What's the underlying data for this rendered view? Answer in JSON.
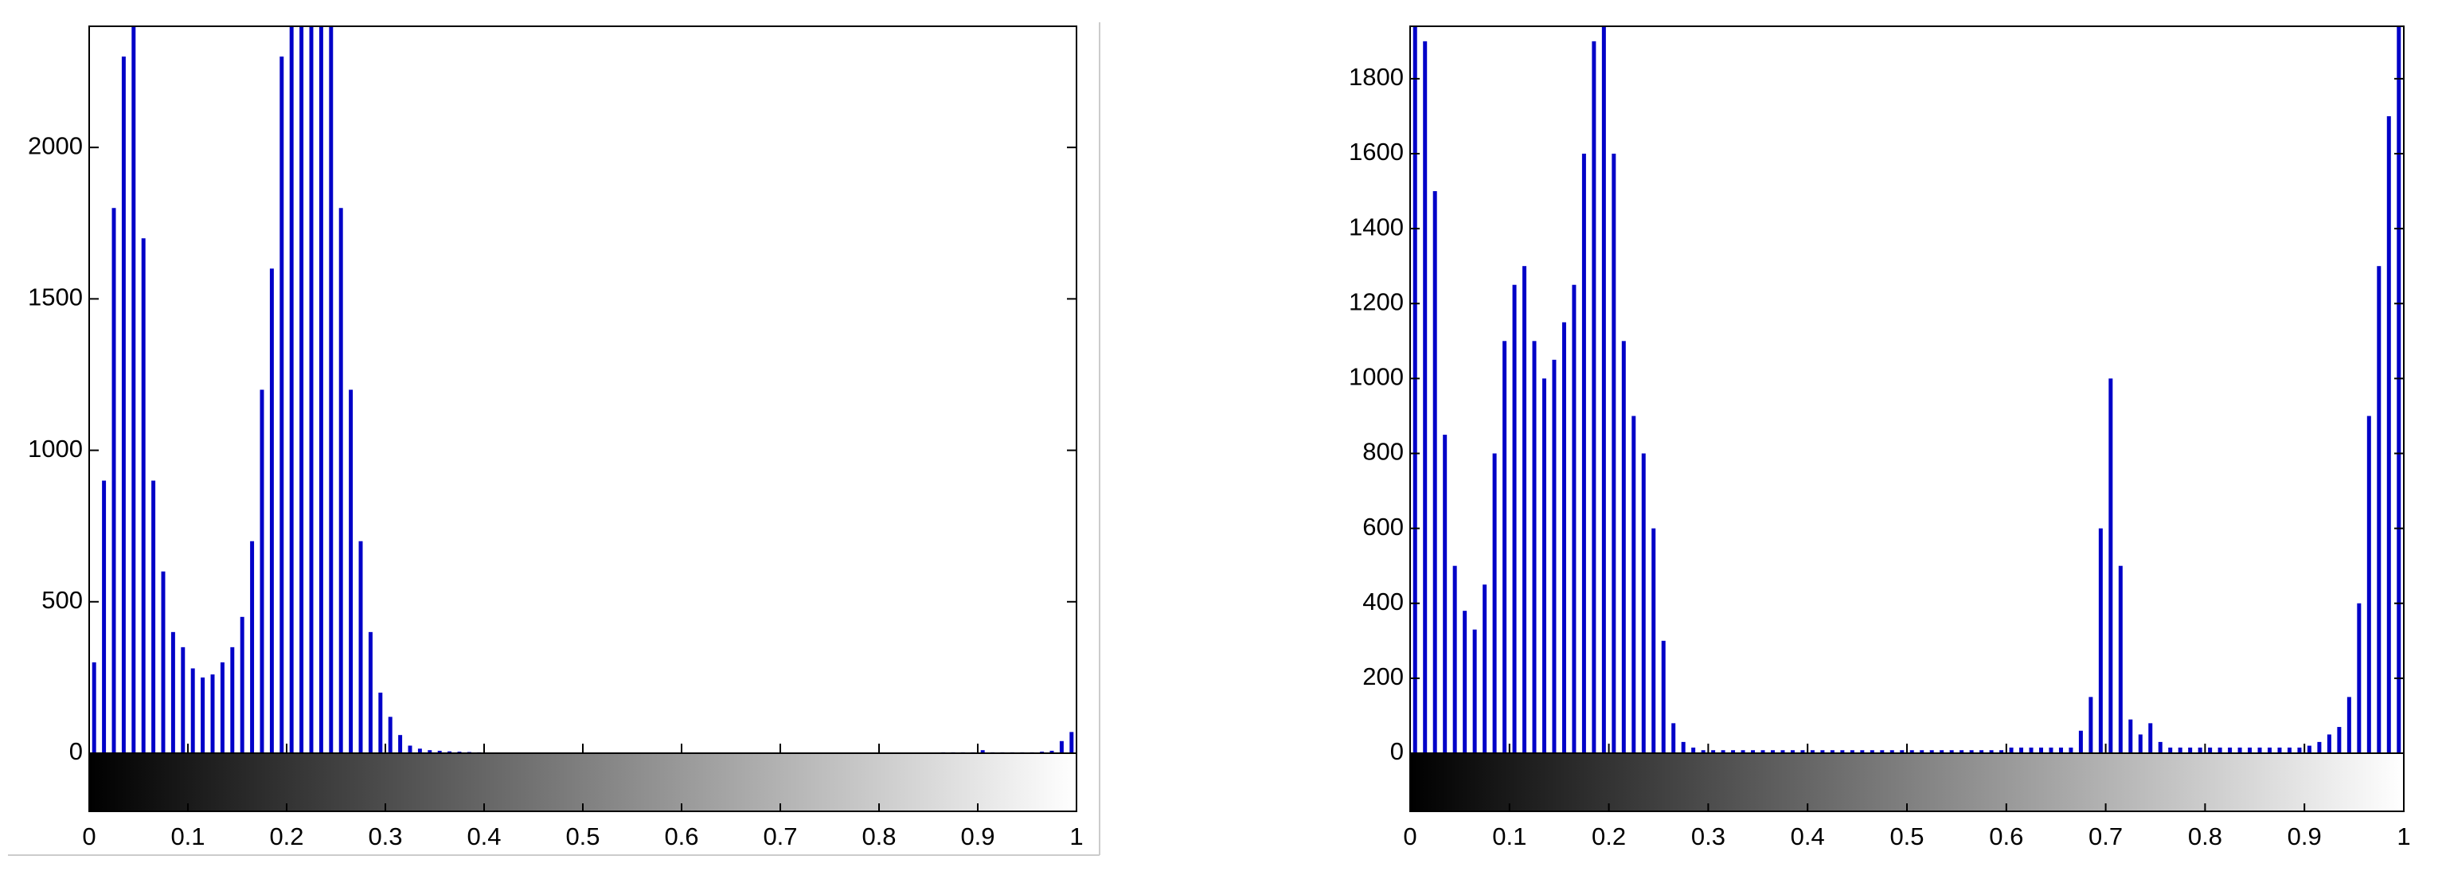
{
  "chart_data": [
    {
      "type": "histogram",
      "color": "#0000c8",
      "colorbar": true,
      "bins": [
        0,
        0.01,
        0.02,
        0.03,
        0.04,
        0.05,
        0.06,
        0.07,
        0.08,
        0.09,
        0.1,
        0.11,
        0.12,
        0.13,
        0.14,
        0.15,
        0.16,
        0.17,
        0.18,
        0.19,
        0.2,
        0.21,
        0.22,
        0.23,
        0.24,
        0.25,
        0.26,
        0.27,
        0.28,
        0.29,
        0.3,
        0.31,
        0.32,
        0.33,
        0.34,
        0.35,
        0.36,
        0.37,
        0.38,
        0.39,
        0.4,
        0.41,
        0.42,
        0.43,
        0.44,
        0.45,
        0.46,
        0.47,
        0.48,
        0.49,
        0.5,
        0.51,
        0.52,
        0.53,
        0.54,
        0.55,
        0.56,
        0.57,
        0.58,
        0.59,
        0.6,
        0.61,
        0.62,
        0.63,
        0.64,
        0.65,
        0.66,
        0.67,
        0.68,
        0.69,
        0.7,
        0.71,
        0.72,
        0.73,
        0.74,
        0.75,
        0.76,
        0.77,
        0.78,
        0.79,
        0.8,
        0.81,
        0.82,
        0.83,
        0.84,
        0.85,
        0.86,
        0.87,
        0.88,
        0.89,
        0.9,
        0.91,
        0.92,
        0.93,
        0.94,
        0.95,
        0.96,
        0.97,
        0.98,
        0.99,
        1
      ],
      "values": [
        300,
        900,
        1800,
        2300,
        2600,
        1700,
        900,
        600,
        400,
        350,
        280,
        250,
        260,
        300,
        350,
        450,
        700,
        1200,
        1600,
        2300,
        2600,
        2500,
        2600,
        2600,
        2500,
        1800,
        1200,
        700,
        400,
        200,
        120,
        60,
        25,
        15,
        10,
        8,
        6,
        5,
        4,
        3,
        2,
        2,
        2,
        2,
        2,
        2,
        2,
        2,
        2,
        2,
        2,
        2,
        2,
        2,
        2,
        2,
        2,
        2,
        2,
        2,
        2,
        2,
        2,
        2,
        2,
        2,
        2,
        2,
        2,
        2,
        2,
        2,
        2,
        2,
        2,
        2,
        2,
        2,
        2,
        2,
        2,
        2,
        2,
        2,
        2,
        2,
        3,
        3,
        3,
        3,
        10,
        3,
        3,
        3,
        3,
        3,
        5,
        8,
        40,
        70
      ],
      "xlim": [
        0,
        1
      ],
      "xticks": [
        0,
        0.1,
        0.2,
        0.3,
        0.4,
        0.5,
        0.6,
        0.7,
        0.8,
        0.9,
        1
      ],
      "ylim": [
        0,
        2400
      ],
      "yticks": [
        0,
        500,
        1000,
        1500,
        2000
      ]
    },
    {
      "type": "histogram",
      "color": "#0000c8",
      "colorbar": true,
      "bins": [
        0,
        0.01,
        0.02,
        0.03,
        0.04,
        0.05,
        0.06,
        0.07,
        0.08,
        0.09,
        0.1,
        0.11,
        0.12,
        0.13,
        0.14,
        0.15,
        0.16,
        0.17,
        0.18,
        0.19,
        0.2,
        0.21,
        0.22,
        0.23,
        0.24,
        0.25,
        0.26,
        0.27,
        0.28,
        0.29,
        0.3,
        0.31,
        0.32,
        0.33,
        0.34,
        0.35,
        0.36,
        0.37,
        0.38,
        0.39,
        0.4,
        0.41,
        0.42,
        0.43,
        0.44,
        0.45,
        0.46,
        0.47,
        0.48,
        0.49,
        0.5,
        0.51,
        0.52,
        0.53,
        0.54,
        0.55,
        0.56,
        0.57,
        0.58,
        0.59,
        0.6,
        0.61,
        0.62,
        0.63,
        0.64,
        0.65,
        0.66,
        0.67,
        0.68,
        0.69,
        0.7,
        0.71,
        0.72,
        0.73,
        0.74,
        0.75,
        0.76,
        0.77,
        0.78,
        0.79,
        0.8,
        0.81,
        0.82,
        0.83,
        0.84,
        0.85,
        0.86,
        0.87,
        0.88,
        0.89,
        0.9,
        0.91,
        0.92,
        0.93,
        0.94,
        0.95,
        0.96,
        0.97,
        0.98,
        0.99,
        1
      ],
      "values": [
        1950,
        1900,
        1500,
        850,
        500,
        380,
        330,
        450,
        800,
        1100,
        1250,
        1300,
        1100,
        1000,
        1050,
        1150,
        1250,
        1600,
        1900,
        2000,
        1600,
        1100,
        900,
        800,
        600,
        300,
        80,
        30,
        15,
        8,
        8,
        8,
        8,
        8,
        8,
        8,
        8,
        8,
        8,
        8,
        8,
        8,
        8,
        8,
        8,
        8,
        8,
        8,
        8,
        8,
        8,
        8,
        8,
        8,
        8,
        8,
        8,
        8,
        8,
        8,
        15,
        15,
        15,
        15,
        15,
        15,
        15,
        60,
        150,
        600,
        1000,
        500,
        90,
        50,
        80,
        30,
        15,
        15,
        15,
        15,
        15,
        15,
        15,
        15,
        15,
        15,
        15,
        15,
        15,
        15,
        20,
        30,
        50,
        70,
        150,
        400,
        900,
        1300,
        1700,
        2000
      ],
      "xlim": [
        0,
        1
      ],
      "xticks": [
        0,
        0.1,
        0.2,
        0.3,
        0.4,
        0.5,
        0.6,
        0.7,
        0.8,
        0.9,
        1
      ],
      "ylim": [
        0,
        1940
      ],
      "yticks": [
        0,
        200,
        400,
        600,
        800,
        1000,
        1200,
        1400,
        1600,
        1800
      ]
    }
  ]
}
